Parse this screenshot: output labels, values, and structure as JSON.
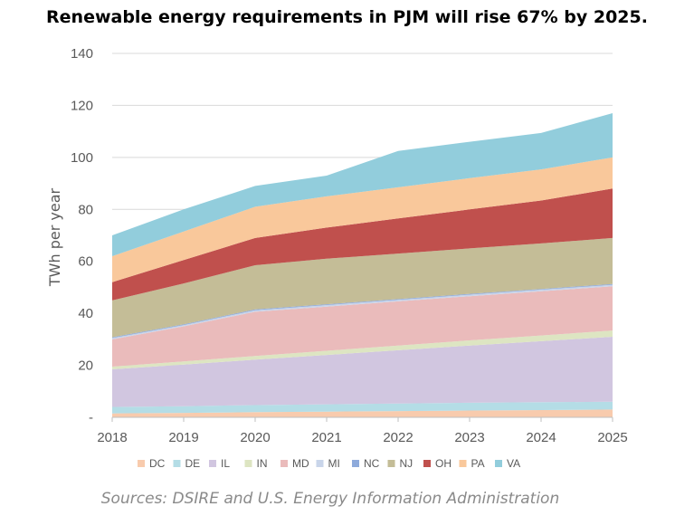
{
  "title": "Renewable energy requirements in PJM will rise 67% by 2025.",
  "source": "Sources: DSIRE and U.S. Energy Information Administration",
  "chart_data": {
    "type": "area",
    "stacked": true,
    "x": [
      "2018",
      "2019",
      "2020",
      "2021",
      "2022",
      "2023",
      "2024",
      "2025"
    ],
    "ylabel": "TWh per year",
    "ylim": [
      0,
      140
    ],
    "yticks": [
      "-",
      "20",
      "40",
      "60",
      "80",
      "100",
      "120",
      "140"
    ],
    "grid": true,
    "legend_position": "bottom",
    "series": [
      {
        "name": "DC",
        "color": "#f8cbad",
        "values": [
          1.5,
          1.7,
          2.0,
          2.2,
          2.4,
          2.6,
          2.8,
          3.0
        ]
      },
      {
        "name": "DE",
        "color": "#b4dde6",
        "values": [
          2.5,
          2.6,
          2.7,
          2.8,
          2.9,
          3.0,
          3.0,
          3.0
        ]
      },
      {
        "name": "IL",
        "color": "#d1c6e0",
        "values": [
          14.5,
          16.0,
          17.5,
          19.0,
          20.5,
          22.0,
          23.5,
          25.0
        ]
      },
      {
        "name": "IN",
        "color": "#dde5c2",
        "values": [
          1.0,
          1.2,
          1.4,
          1.6,
          1.8,
          2.0,
          2.2,
          2.4
        ]
      },
      {
        "name": "MD",
        "color": "#eabbbb",
        "values": [
          10.5,
          13.5,
          17.0,
          17.0,
          17.0,
          17.0,
          17.0,
          17.0
        ]
      },
      {
        "name": "MI",
        "color": "#c9d5ea",
        "values": [
          0.5,
          0.5,
          0.6,
          0.6,
          0.6,
          0.6,
          0.6,
          0.6
        ]
      },
      {
        "name": "NC",
        "color": "#8eaadb",
        "values": [
          0.3,
          0.3,
          0.3,
          0.3,
          0.3,
          0.3,
          0.3,
          0.3
        ]
      },
      {
        "name": "NJ",
        "color": "#c4bd97",
        "values": [
          14.2,
          15.7,
          17.0,
          17.5,
          17.5,
          17.5,
          17.5,
          17.7
        ]
      },
      {
        "name": "OH",
        "color": "#c0504d",
        "values": [
          7.0,
          9.0,
          10.5,
          12.0,
          13.5,
          15.0,
          16.5,
          19.0
        ]
      },
      {
        "name": "PA",
        "color": "#f9c89b",
        "values": [
          10.0,
          11.0,
          12.0,
          12.0,
          12.0,
          12.0,
          12.0,
          12.0
        ]
      },
      {
        "name": "VA",
        "color": "#92cddc",
        "values": [
          8.0,
          8.5,
          8.0,
          8.0,
          14.0,
          14.0,
          14.0,
          17.0
        ]
      }
    ]
  }
}
